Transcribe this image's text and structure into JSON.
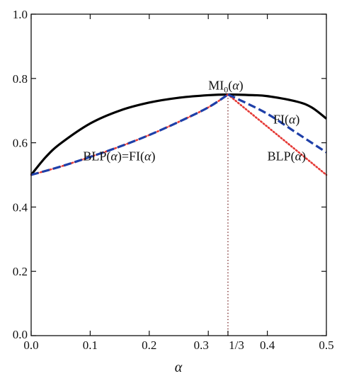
{
  "chart_data": {
    "type": "line",
    "title": "",
    "xlabel": "α",
    "ylabel": "",
    "xlim": [
      0,
      0.5
    ],
    "ylim": [
      0,
      1
    ],
    "xticks": [
      {
        "value": 0.0,
        "label": "0.0"
      },
      {
        "value": 0.1,
        "label": "0.1"
      },
      {
        "value": 0.2,
        "label": "0.2"
      },
      {
        "value": 0.3,
        "label": "0.3"
      },
      {
        "value": 0.3333,
        "label": "1/3"
      },
      {
        "value": 0.4,
        "label": "0.4"
      },
      {
        "value": 0.5,
        "label": "0.5"
      }
    ],
    "yticks": [
      {
        "value": 0.0,
        "label": "0.0"
      },
      {
        "value": 0.2,
        "label": "0.2"
      },
      {
        "value": 0.4,
        "label": "0.4"
      },
      {
        "value": 0.6,
        "label": "0.6"
      },
      {
        "value": 0.8,
        "label": "0.8"
      },
      {
        "value": 1.0,
        "label": "1.0"
      }
    ],
    "grid": false,
    "vline": {
      "x": 0.3333,
      "color": "#c62828",
      "style": "dotted"
    },
    "series": [
      {
        "id": "mi0",
        "color": "#000000",
        "style": "solid",
        "x": [
          0.0,
          0.025,
          0.05,
          0.1,
          0.15,
          0.2,
          0.25,
          0.3,
          0.3333,
          0.375,
          0.4,
          0.45,
          0.475,
          0.5
        ],
        "y": [
          0.5,
          0.556,
          0.598,
          0.66,
          0.7,
          0.725,
          0.74,
          0.748,
          0.75,
          0.748,
          0.745,
          0.728,
          0.71,
          0.675
        ]
      },
      {
        "id": "blp",
        "color": "#e53935",
        "style": "dotted",
        "x": [
          0.0,
          0.05,
          0.1,
          0.15,
          0.2,
          0.25,
          0.3,
          0.3333,
          0.35,
          0.4,
          0.45,
          0.5
        ],
        "y": [
          0.5,
          0.526,
          0.556,
          0.588,
          0.624,
          0.665,
          0.71,
          0.75,
          0.725,
          0.65,
          0.575,
          0.5
        ]
      },
      {
        "id": "fi",
        "color": "#1e3fa8",
        "style": "dashed",
        "x": [
          0.0,
          0.05,
          0.1,
          0.15,
          0.2,
          0.25,
          0.3,
          0.3333,
          0.35,
          0.4,
          0.45,
          0.5
        ],
        "y": [
          0.5,
          0.526,
          0.556,
          0.588,
          0.624,
          0.665,
          0.71,
          0.75,
          0.736,
          0.69,
          0.63,
          0.57
        ]
      }
    ],
    "annotations": [
      {
        "id": "mi0",
        "prefix": "MI",
        "subscript": "0",
        "open": "(",
        "var": "α",
        "close": ")",
        "x": 0.3,
        "y": 0.765
      },
      {
        "id": "fi",
        "prefix": "FI",
        "subscript": "",
        "open": "(",
        "var": "α",
        "close": ")",
        "x": 0.41,
        "y": 0.66
      },
      {
        "id": "blp-fi",
        "prefix": "BLP",
        "subscript": "",
        "open": "(",
        "var": "α",
        "close": ")=FI(α)",
        "x": 0.088,
        "y": 0.545
      },
      {
        "id": "blp",
        "prefix": "BLP",
        "subscript": "",
        "open": "(",
        "var": "α",
        "close": ")",
        "x": 0.4,
        "y": 0.545
      }
    ]
  }
}
